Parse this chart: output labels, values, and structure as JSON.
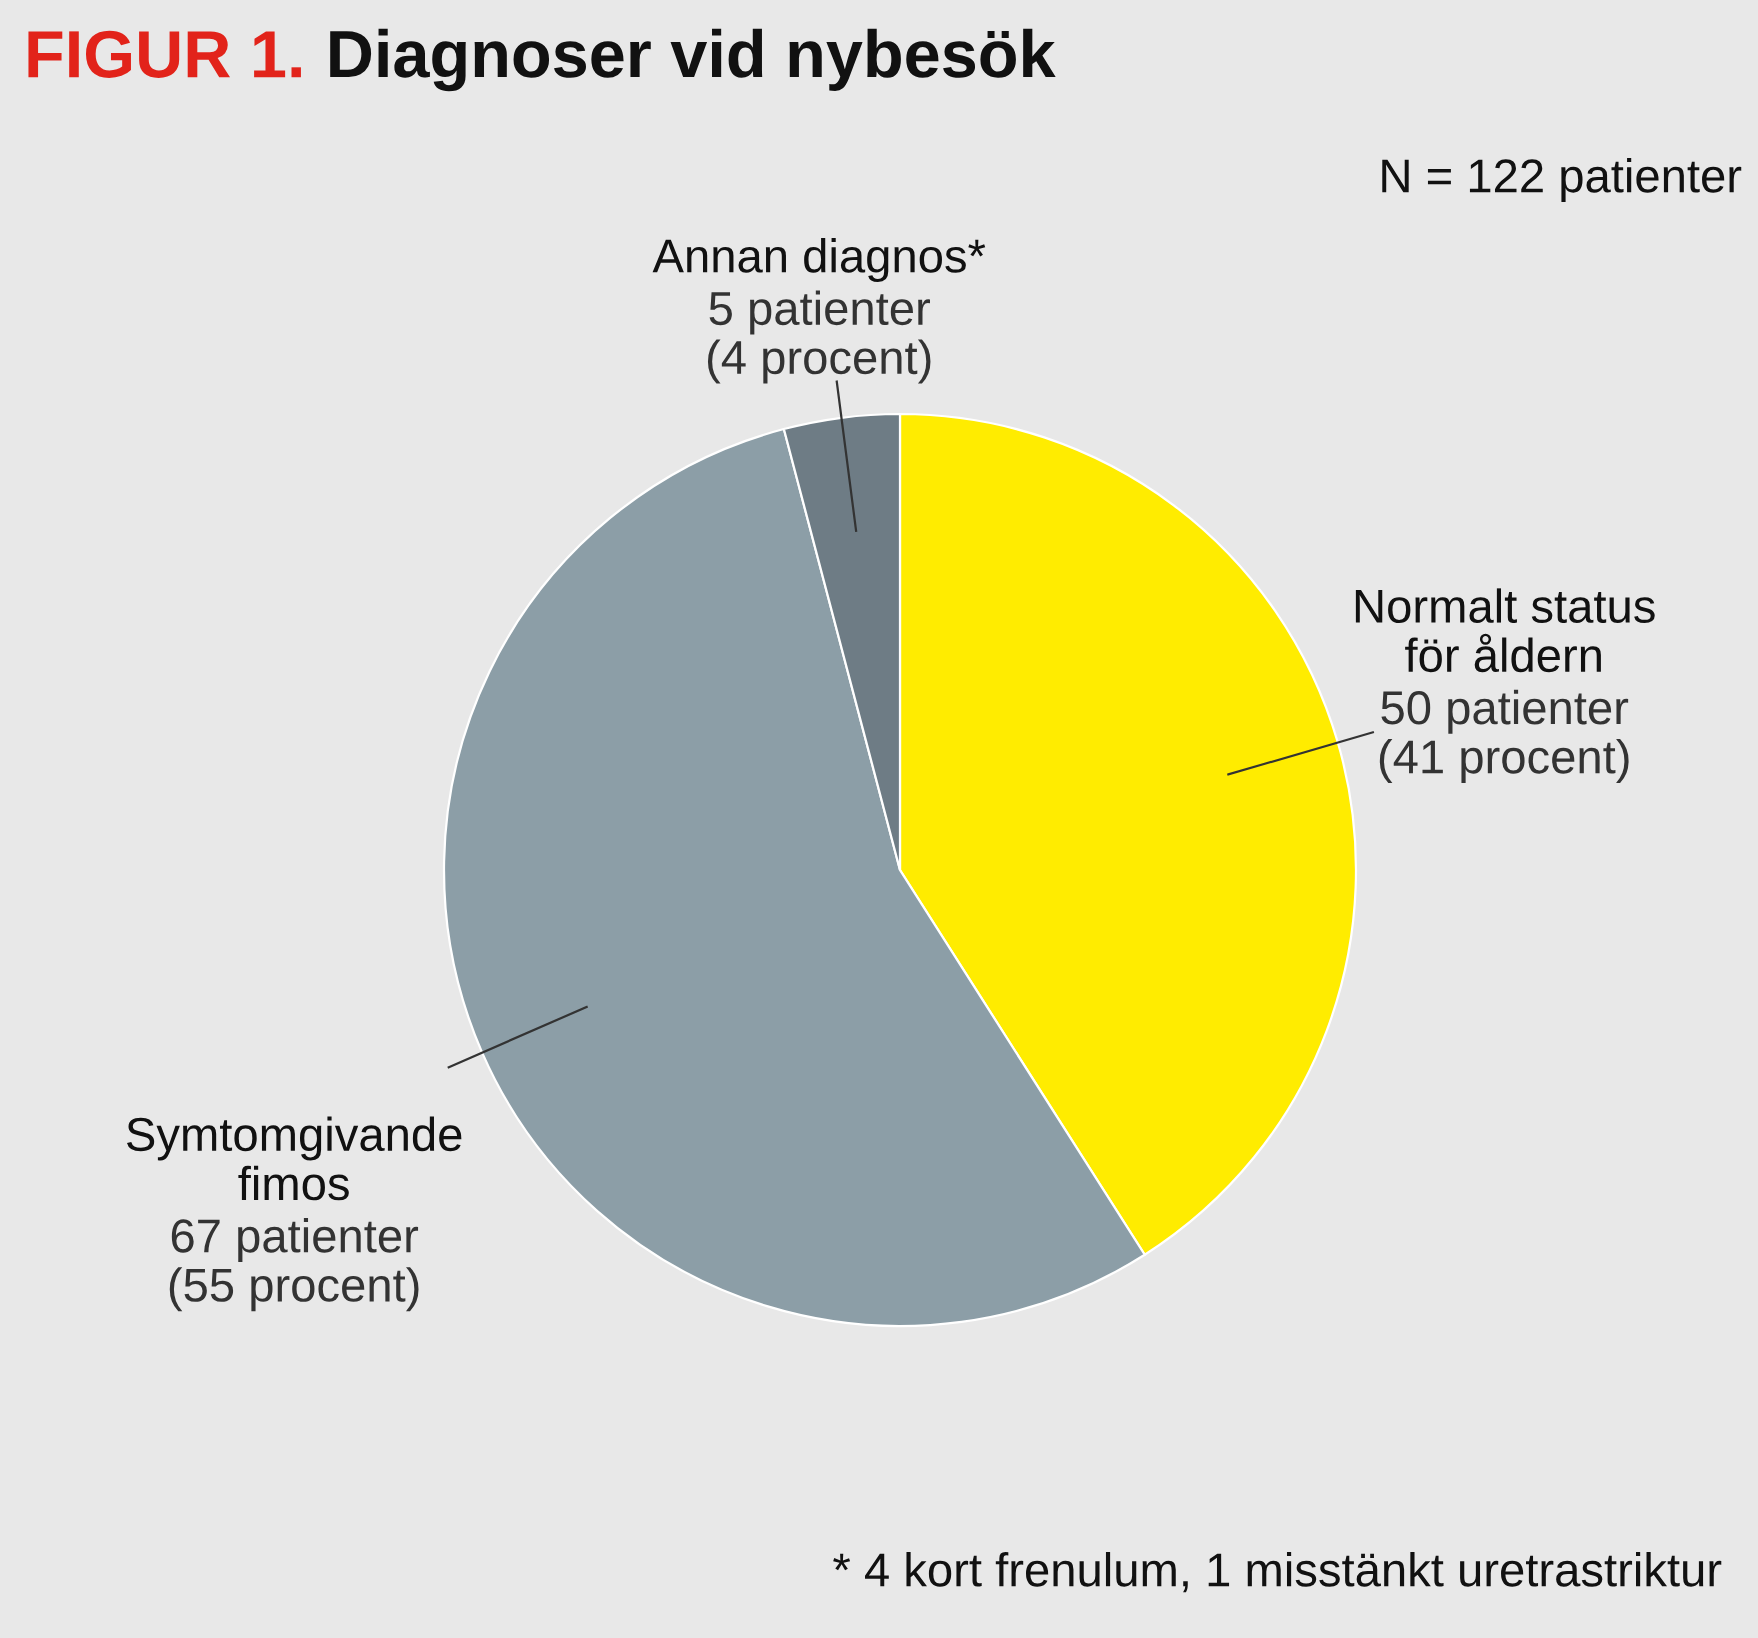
{
  "chart_data": {
    "type": "pie",
    "title": "Diagnoser vid nybesök",
    "categories": [
      "Normalt status\nför åldern",
      "Symtomgivande\nfimos",
      "Annan diagnos*"
    ],
    "values": [
      50,
      67,
      5
    ],
    "value_labels": [
      "50 patienter\n(41 procent)",
      "67 patienter\n(55 procent)",
      "5 patienter\n(4 procent)"
    ],
    "colors": [
      "#ffec00",
      "#8c9ea7",
      "#6e7c85"
    ],
    "annotations": [
      "FIGUR 1.",
      "N = 122 patienter",
      "* 4 kort frenulum, 1 misstänkt uretrastriktur"
    ]
  }
}
